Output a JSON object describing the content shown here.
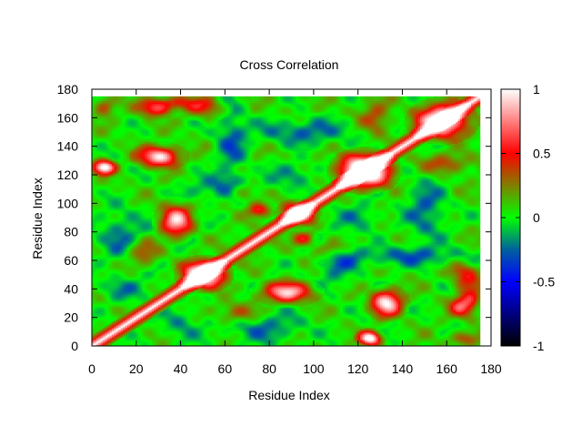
{
  "chart_data": {
    "type": "heatmap",
    "title": "Cross Correlation",
    "xlabel": "Residue Index",
    "ylabel": "Residue Index",
    "xlim": [
      0,
      180
    ],
    "ylim": [
      0,
      180
    ],
    "residue_count": 175,
    "x_ticks": [
      "0",
      "20",
      "40",
      "60",
      "80",
      "100",
      "120",
      "140",
      "160",
      "180"
    ],
    "y_ticks": [
      "0",
      "20",
      "40",
      "60",
      "80",
      "100",
      "120",
      "140",
      "160",
      "180"
    ],
    "colorbar": {
      "range": [
        -1,
        1
      ],
      "tick_labels": [
        "1",
        "0.5",
        "0",
        "-0.5",
        "-1"
      ],
      "stops": [
        {
          "value": -1.0,
          "color": "#000000"
        },
        {
          "value": -0.5,
          "color": "#0000ff"
        },
        {
          "value": -0.25,
          "color": "#0060a0"
        },
        {
          "value": 0.0,
          "color": "#00ff00"
        },
        {
          "value": 0.5,
          "color": "#ff0000"
        },
        {
          "value": 1.0,
          "color": "#ffffff"
        }
      ]
    },
    "diagonal_value": 1.0,
    "strong_regions": [
      {
        "x": [
          40,
          60
        ],
        "y": [
          40,
          60
        ],
        "value": 0.6
      },
      {
        "x": [
          110,
          135
        ],
        "y": [
          110,
          135
        ],
        "value": 0.7
      },
      {
        "x": [
          145,
          170
        ],
        "y": [
          145,
          170
        ],
        "value": 0.55
      },
      {
        "x": [
          85,
          100
        ],
        "y": [
          85,
          100
        ],
        "value": 0.5
      },
      {
        "x": [
          160,
          175
        ],
        "y": [
          0,
          10
        ],
        "value": 0.35
      },
      {
        "x": [
          20,
          35
        ],
        "y": [
          160,
          170
        ],
        "value": 0.45
      },
      {
        "x": [
          40,
          60
        ],
        "y": [
          160,
          175
        ],
        "value": 0.4
      },
      {
        "x": [
          20,
          40
        ],
        "y": [
          125,
          140
        ],
        "value": 0.45
      },
      {
        "x": [
          125,
          140
        ],
        "y": [
          20,
          40
        ],
        "value": 0.45
      },
      {
        "x": [
          75,
          100
        ],
        "y": [
          30,
          45
        ],
        "value": 0.4
      },
      {
        "x": [
          30,
          45
        ],
        "y": [
          75,
          100
        ],
        "value": 0.4
      },
      {
        "x": [
          0,
          10
        ],
        "y": [
          120,
          130
        ],
        "value": 0.5
      },
      {
        "x": [
          120,
          130
        ],
        "y": [
          0,
          10
        ],
        "value": 0.5
      },
      {
        "x": [
          165,
          175
        ],
        "y": [
          20,
          45
        ],
        "value": 0.45
      },
      {
        "x": [
          70,
          80
        ],
        "y": [
          90,
          100
        ],
        "value": 0.5
      },
      {
        "x": [
          100,
          115
        ],
        "y": [
          60,
          75
        ],
        "value": 0.4
      },
      {
        "x": [
          15,
          30
        ],
        "y": [
          55,
          75
        ],
        "value": 0.35
      },
      {
        "x": [
          120,
          135
        ],
        "y": [
          145,
          175
        ],
        "value": 0.3
      }
    ],
    "negative_regions": [
      {
        "x": [
          55,
          70
        ],
        "y": [
          110,
          175
        ],
        "value": -0.3
      },
      {
        "x": [
          100,
          120
        ],
        "y": [
          40,
          80
        ],
        "value": -0.3
      },
      {
        "x": [
          0,
          25
        ],
        "y": [
          55,
          100
        ],
        "value": -0.25
      },
      {
        "x": [
          140,
          160
        ],
        "y": [
          70,
          120
        ],
        "value": -0.3
      },
      {
        "x": [
          80,
          100
        ],
        "y": [
          110,
          130
        ],
        "value": -0.25
      },
      {
        "x": [
          30,
          50
        ],
        "y": [
          0,
          30
        ],
        "value": -0.2
      }
    ]
  }
}
